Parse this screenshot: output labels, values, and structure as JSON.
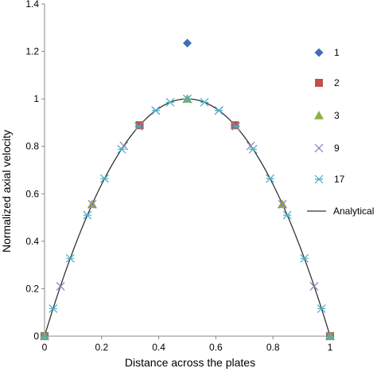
{
  "chart_data": {
    "type": "scatter",
    "xlabel": "Distance across the plates",
    "ylabel": "Normalized axial velocity",
    "xlim": [
      0,
      1
    ],
    "ylim": [
      0,
      1.4
    ],
    "x_ticks": [
      "0",
      "0.2",
      "0.4",
      "0.6",
      "0.8",
      "1"
    ],
    "y_ticks": [
      "0",
      "0.2",
      "0.4",
      "0.6",
      "0.8",
      "1",
      "1.2",
      "1.4"
    ],
    "grid": false,
    "legend_position": "right",
    "series": [
      {
        "name": "1",
        "marker": "diamond",
        "color": "#3F6FB5",
        "x": [
          0,
          0.5,
          1
        ],
        "y": [
          0,
          1.235,
          0
        ]
      },
      {
        "name": "2",
        "marker": "square",
        "color": "#C0504D",
        "x": [
          0,
          0.333,
          0.667,
          1
        ],
        "y": [
          0,
          0.889,
          0.889,
          0
        ]
      },
      {
        "name": "3",
        "marker": "triangle",
        "color": "#8DB04C",
        "x": [
          0,
          0.167,
          0.5,
          0.833,
          1
        ],
        "y": [
          0,
          0.556,
          1.0,
          0.556,
          0
        ]
      },
      {
        "name": "9",
        "marker": "x",
        "color": "#8A78B5",
        "x": [
          0,
          0.056,
          0.167,
          0.278,
          0.389,
          0.5,
          0.611,
          0.722,
          0.833,
          0.944,
          1
        ],
        "y": [
          0,
          0.21,
          0.556,
          0.802,
          0.951,
          1.0,
          0.951,
          0.802,
          0.556,
          0.21,
          0
        ]
      },
      {
        "name": "17",
        "marker": "asterisk",
        "color": "#4BACC6",
        "x": [
          0,
          0.03,
          0.09,
          0.15,
          0.21,
          0.27,
          0.33,
          0.39,
          0.44,
          0.5,
          0.56,
          0.61,
          0.67,
          0.73,
          0.79,
          0.85,
          0.91,
          0.97,
          1
        ],
        "y": [
          0,
          0.116,
          0.328,
          0.51,
          0.664,
          0.788,
          0.884,
          0.951,
          0.986,
          1.0,
          0.986,
          0.951,
          0.884,
          0.788,
          0.664,
          0.51,
          0.328,
          0.116,
          0
        ]
      },
      {
        "name": "Analytical",
        "marker": "line",
        "color": "#333333",
        "function": "4x(1-x)"
      }
    ]
  }
}
